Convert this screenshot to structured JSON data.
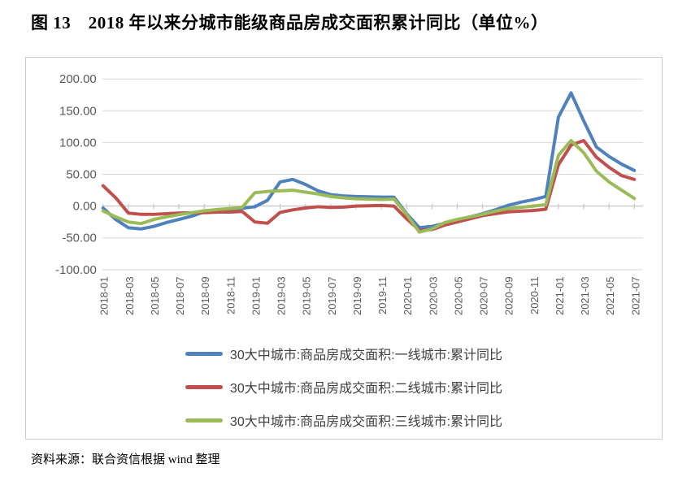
{
  "figure": {
    "title": "图 13　2018 年以来分城市能级商品房成交面积累计同比（单位%）",
    "source": "资料来源：联合资信根据 wind 整理"
  },
  "chart_data": {
    "type": "line",
    "title": "2018 年以来分城市能级商品房成交面积累计同比",
    "unit": "%",
    "grid": true,
    "legend_position": "bottom",
    "ylim": [
      -100,
      200
    ],
    "y_tick_step": 50,
    "y_tick_labels": [
      "200.00",
      "150.00",
      "100.00",
      "50.00",
      "0.00",
      "-50.00",
      "-100.00"
    ],
    "y_tick_values": [
      200,
      150,
      100,
      50,
      0,
      -50,
      -100
    ],
    "x_tick_every": 2,
    "categories": [
      "2018-01",
      "2018-02",
      "2018-03",
      "2018-04",
      "2018-05",
      "2018-06",
      "2018-07",
      "2018-08",
      "2018-09",
      "2018-10",
      "2018-11",
      "2018-12",
      "2019-01",
      "2019-02",
      "2019-03",
      "2019-04",
      "2019-05",
      "2019-06",
      "2019-07",
      "2019-08",
      "2019-09",
      "2019-10",
      "2019-11",
      "2019-12",
      "2020-01",
      "2020-02",
      "2020-03",
      "2020-04",
      "2020-05",
      "2020-06",
      "2020-07",
      "2020-08",
      "2020-09",
      "2020-10",
      "2020-11",
      "2020-12",
      "2021-01",
      "2021-02",
      "2021-03",
      "2021-04",
      "2021-05",
      "2021-06",
      "2021-07"
    ],
    "series": [
      {
        "name": "30大中城市:商品房成交面积:一线城市:累计同比",
        "color": "#4F81BD",
        "values": [
          -3,
          -21,
          -34,
          -36,
          -32,
          -26,
          -21,
          -16,
          -9,
          -6.5,
          -5,
          -3.5,
          -1,
          9,
          38,
          42,
          34,
          24,
          18,
          16,
          15,
          14.5,
          14,
          14,
          -12,
          -34,
          -32,
          -27,
          -22,
          -17,
          -12,
          -6,
          1,
          6,
          10,
          15,
          140,
          178,
          134,
          93,
          78,
          66,
          56
        ]
      },
      {
        "name": "30大中城市:商品房成交面积:二线城市:累计同比",
        "color": "#C0504D",
        "values": [
          32,
          13,
          -11,
          -13,
          -13,
          -12,
          -11,
          -10.5,
          -10.5,
          -9.5,
          -9.5,
          -8.5,
          -25,
          -27,
          -10,
          -6,
          -3,
          -1,
          -2,
          -1.5,
          0,
          0.5,
          1,
          0,
          -20,
          -38,
          -37,
          -30,
          -25,
          -20,
          -15,
          -12,
          -9,
          -8,
          -7,
          -5,
          65,
          96,
          103,
          77,
          61,
          48,
          42
        ]
      },
      {
        "name": "30大中城市:商品房成交面积:三线城市:累计同比",
        "color": "#9BBB59",
        "values": [
          -7.5,
          -17,
          -25,
          -27.5,
          -21,
          -17,
          -13.5,
          -10.5,
          -7.5,
          -5.5,
          -4,
          -2,
          21,
          23,
          24,
          25,
          22,
          19,
          15,
          13,
          11.5,
          11,
          10.5,
          11,
          -13,
          -41,
          -36,
          -26,
          -21,
          -17,
          -13,
          -8,
          -4,
          -2,
          0,
          2,
          80,
          103,
          84,
          55,
          38,
          25,
          12
        ]
      }
    ],
    "gridline_color": "#d9d9d9",
    "axis_line_color": "#bfbfbf",
    "axis_text_color": "#595959"
  }
}
